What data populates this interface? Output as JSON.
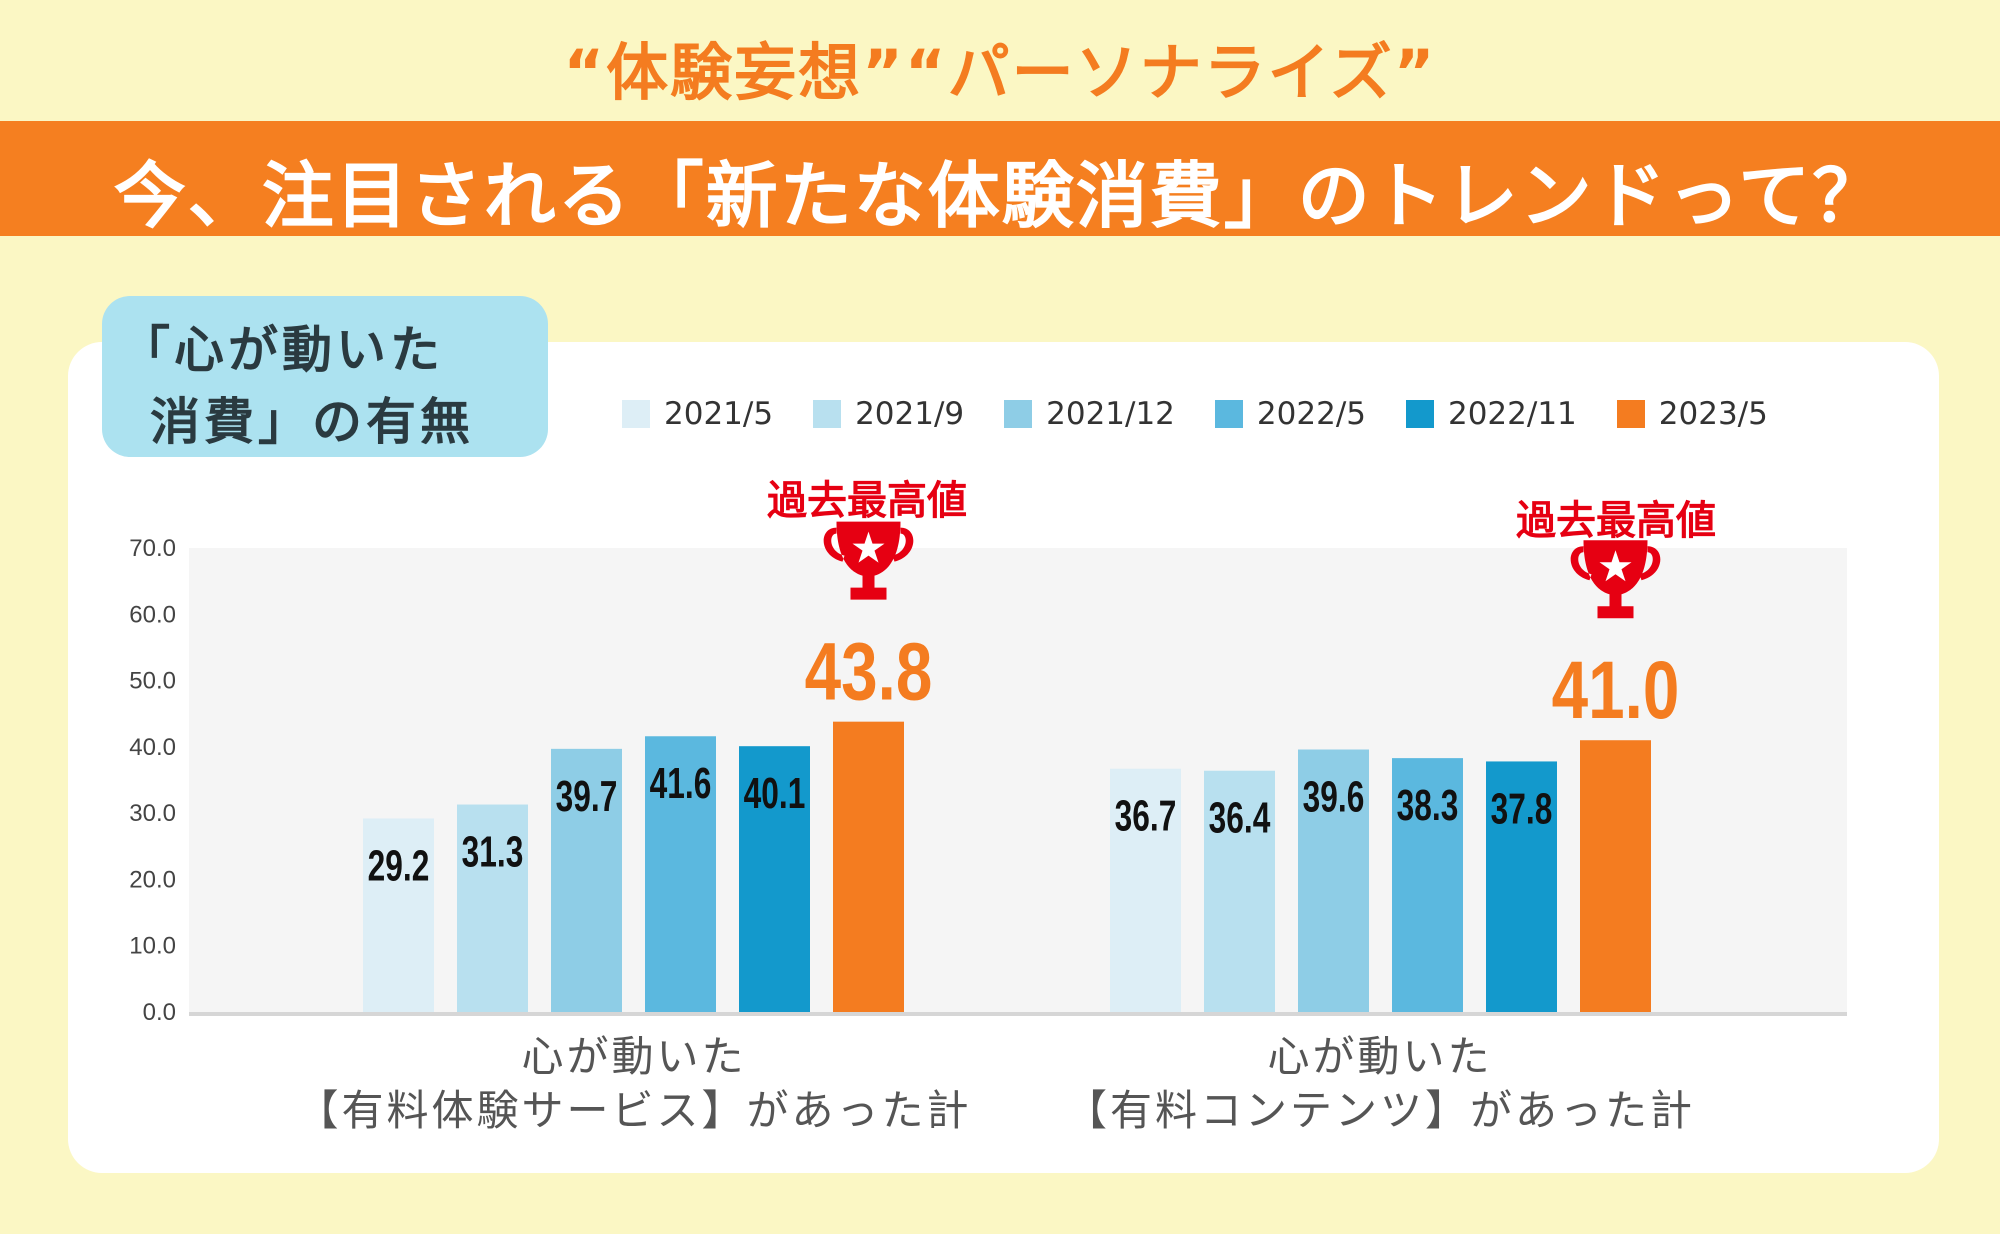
{
  "header": {
    "subtitle": "“体験妄想”“パーソナライズ”",
    "title": "今、注目される「新たな体験消費」のトレンドって？"
  },
  "question": {
    "line1": "「心が動いた",
    "line2": "消費」の有無"
  },
  "chart_data": {
    "type": "bar",
    "categories": [
      [
        "心が動いた",
        "【有料体験サービス】があった計"
      ],
      [
        "心が動いた",
        "【有料コンテンツ】があった計"
      ]
    ],
    "series": [
      {
        "name": "2021/5",
        "color": "#ddeef6",
        "values": [
          29.2,
          36.7
        ]
      },
      {
        "name": "2021/9",
        "color": "#b8e0ef",
        "values": [
          31.3,
          36.4
        ]
      },
      {
        "name": "2021/12",
        "color": "#8ecde6",
        "values": [
          39.7,
          39.6
        ]
      },
      {
        "name": "2022/5",
        "color": "#5bb8df",
        "values": [
          41.6,
          38.3
        ]
      },
      {
        "name": "2022/11",
        "color": "#1399cc",
        "values": [
          40.1,
          37.8
        ]
      },
      {
        "name": "2023/5",
        "color": "#f47c20",
        "values": [
          43.8,
          41.0
        ]
      }
    ],
    "ylim": [
      0,
      70
    ],
    "yticks": [
      "0.0",
      "10.0",
      "20.0",
      "30.0",
      "40.0",
      "50.0",
      "60.0",
      "70.0"
    ],
    "legend_position": "top",
    "annotation": "過去最高値",
    "annotation_icon": "trophy-icon",
    "annotation_color": "#e60012",
    "grid": false
  }
}
